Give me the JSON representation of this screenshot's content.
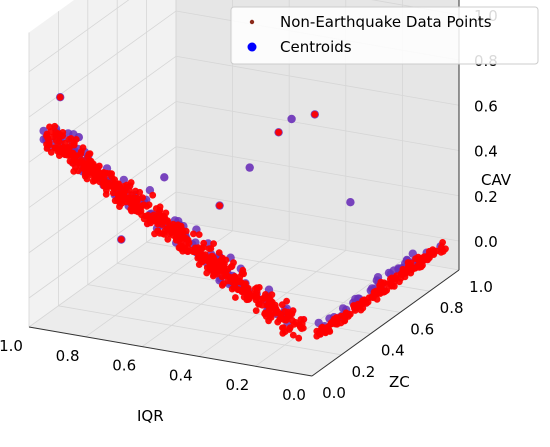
{
  "chart_data": {
    "type": "scatter",
    "projection": "3d",
    "title": "",
    "xlabel": "IQR",
    "ylabel": "ZC",
    "zlabel": "CAV",
    "xlim": [
      0.0,
      1.0
    ],
    "ylim": [
      0.0,
      1.0
    ],
    "zlim": [
      0.0,
      1.0
    ],
    "x_ticks": [
      "1.0",
      "0.8",
      "0.6",
      "0.4",
      "0.2",
      "0.0"
    ],
    "y_ticks": [
      "0.0",
      "0.2",
      "0.4",
      "0.6",
      "0.8",
      "1.0"
    ],
    "z_ticks": [
      "0.0",
      "0.2",
      "0.4",
      "0.6",
      "0.8",
      "1.0"
    ],
    "grid": true,
    "legend_position": "top-right",
    "series": [
      {
        "name": "Non-Earthquake Data Points",
        "color": "#8b2a1a",
        "marker": "small-dot",
        "clusters": [
          {
            "region": "main diagonal band",
            "iqr": [
              0.05,
              0.95
            ],
            "zc": [
              0.0,
              0.2
            ],
            "cav": [
              0.05,
              0.75
            ]
          },
          {
            "region": "zc ridge",
            "iqr": [
              0.0,
              0.05
            ],
            "zc": [
              0.1,
              0.95
            ],
            "cav": [
              0.0,
              0.05
            ]
          }
        ]
      },
      {
        "name": "Centroids",
        "color": "#0000ff",
        "marker": "circle"
      }
    ],
    "overlay_colors": {
      "dense_core": "#ff0000",
      "centroid_fill": "#6a30b8",
      "halo": "#e03ce8"
    },
    "legend": [
      {
        "label": "Non-Earthquake Data Points",
        "color": "#8b2a1a",
        "icon": "small-dot-icon"
      },
      {
        "label": "Centroids",
        "color": "#0000ff",
        "icon": "circle-icon"
      }
    ]
  }
}
